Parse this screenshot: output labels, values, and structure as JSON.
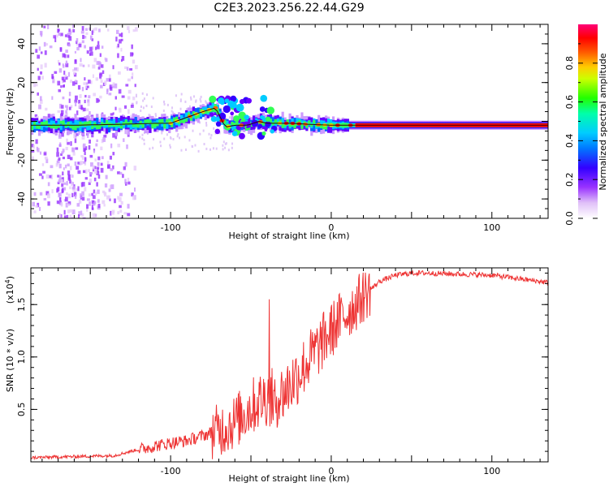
{
  "title": "C2E3.2023.256.22.44.G29",
  "chart_data": [
    {
      "type": "heatmap",
      "xlabel": "Height of straight line (km)",
      "ylabel": "Frequency (Hz)",
      "xlim": [
        -187,
        135
      ],
      "ylim": [
        -50,
        50
      ],
      "xticks": [
        -100,
        0,
        100
      ],
      "yticks": [
        -40,
        -20,
        0,
        20,
        40
      ],
      "colorbar": {
        "label": "Normalized spectral amplitude",
        "range": [
          0,
          1
        ],
        "ticks": [
          0.0,
          0.2,
          0.4,
          0.6,
          0.8
        ],
        "colors": [
          "#ffffff",
          "#e8c8f8",
          "#9933ff",
          "#3300ff",
          "#0066ff",
          "#00ccff",
          "#00ffaa",
          "#33ff00",
          "#ffff00",
          "#ff9900",
          "#ff0000",
          "#ff0066"
        ]
      },
      "ridge": {
        "x": [
          -187,
          -160,
          -130,
          -110,
          -100,
          -90,
          -80,
          -72,
          -66,
          -60,
          -52,
          -45,
          -40,
          -35,
          -25,
          -15,
          0,
          20,
          50,
          80,
          110,
          135
        ],
        "y": [
          -2,
          -2,
          -1.5,
          -1,
          -1,
          2,
          5,
          7,
          -3,
          -2,
          -2,
          0,
          -1,
          -1,
          -1,
          -1.5,
          -2,
          -2,
          -2,
          -2,
          -2,
          -2
        ]
      }
    },
    {
      "type": "line",
      "xlabel": "Height of straight line (km)",
      "ylabel": "SNR (10 * v/v)",
      "yscale_label": "(x10",
      "yscale_exp": "4",
      "yscale_suffix": ")",
      "xlim": [
        -187,
        135
      ],
      "ylim": [
        0,
        1.85
      ],
      "xticks": [
        -100,
        0,
        100
      ],
      "yticks": [
        0.5,
        1.0,
        1.5
      ],
      "color": "#ee3333",
      "series": [
        {
          "x": [
            -187,
            -160,
            -135,
            -125,
            -110,
            -100,
            -90,
            -80,
            -70,
            -60,
            -55,
            -50,
            -45,
            -40,
            -35,
            -30,
            -25,
            -20,
            -15,
            -10,
            -5,
            0,
            5,
            10,
            15,
            20,
            25,
            30,
            40,
            50,
            60,
            80,
            100,
            110,
            120,
            135
          ],
          "y": [
            0.04,
            0.05,
            0.06,
            0.1,
            0.15,
            0.18,
            0.2,
            0.25,
            0.3,
            0.38,
            0.45,
            0.52,
            0.58,
            0.62,
            0.6,
            0.65,
            0.75,
            0.85,
            0.95,
            1.05,
            1.15,
            1.25,
            1.35,
            1.42,
            1.5,
            1.58,
            1.65,
            1.72,
            1.78,
            1.8,
            1.8,
            1.79,
            1.78,
            1.76,
            1.74,
            1.71
          ]
        }
      ]
    }
  ]
}
